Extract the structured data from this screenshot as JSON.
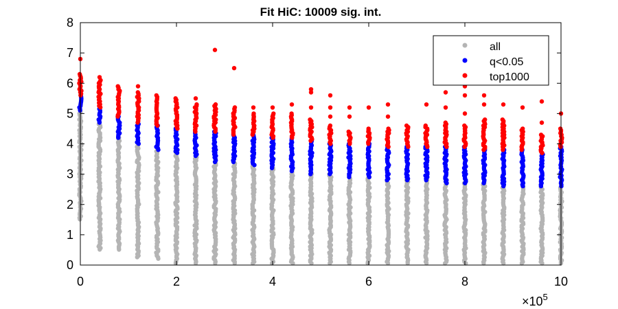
{
  "chart_data": {
    "type": "scatter",
    "title": "Fit HiC: 10009 sig. int.",
    "xlabel": "",
    "ylabel": "",
    "x_exponent_label": "×10",
    "x_exponent_power": "5",
    "xlim": [
      0,
      10
    ],
    "ylim": [
      0,
      8
    ],
    "x_ticks": [
      0,
      2,
      4,
      6,
      8,
      10
    ],
    "x_tick_labels": [
      "0",
      "2",
      "4",
      "6",
      "8",
      "10"
    ],
    "y_ticks": [
      0,
      1,
      2,
      3,
      4,
      5,
      6,
      7,
      8
    ],
    "y_tick_labels": [
      "0",
      "1",
      "2",
      "3",
      "4",
      "5",
      "6",
      "7",
      "8"
    ],
    "grid": false,
    "legend_position": "top-right",
    "series": [
      {
        "name": "all",
        "color": "#b4b4b4"
      },
      {
        "name": "q<0.05",
        "color": "#0000ff"
      },
      {
        "name": "top1000",
        "color": "#ff0000"
      }
    ],
    "distance_bins": [
      {
        "x": 0.0,
        "all": [
          1.5,
          5.1
        ],
        "q": [
          5.1,
          5.6
        ],
        "top": [
          5.6,
          6.3
        ],
        "top_outliers": [
          6.8
        ]
      },
      {
        "x": 0.4,
        "all": [
          0.5,
          4.7
        ],
        "q": [
          4.7,
          5.2
        ],
        "top": [
          5.2,
          6.1
        ],
        "top_outliers": [
          6.2
        ]
      },
      {
        "x": 0.8,
        "all": [
          0.5,
          4.2
        ],
        "q": [
          4.2,
          4.9
        ],
        "top": [
          4.9,
          5.9
        ],
        "top_outliers": []
      },
      {
        "x": 1.2,
        "all": [
          0.25,
          4.0
        ],
        "q": [
          4.0,
          4.7
        ],
        "top": [
          4.7,
          5.7
        ],
        "top_outliers": [
          5.9
        ]
      },
      {
        "x": 1.6,
        "all": [
          0.2,
          3.8
        ],
        "q": [
          3.8,
          4.6
        ],
        "top": [
          4.6,
          5.6
        ],
        "top_outliers": []
      },
      {
        "x": 2.0,
        "all": [
          0.05,
          3.7
        ],
        "q": [
          3.7,
          4.5
        ],
        "top": [
          4.5,
          5.5
        ],
        "top_outliers": []
      },
      {
        "x": 2.4,
        "all": [
          0.05,
          3.6
        ],
        "q": [
          3.6,
          4.4
        ],
        "top": [
          4.4,
          5.3
        ],
        "top_outliers": [
          5.5
        ]
      },
      {
        "x": 2.8,
        "all": [
          0.05,
          3.4
        ],
        "q": [
          3.4,
          4.4
        ],
        "top": [
          4.4,
          5.3
        ],
        "top_outliers": [
          7.1
        ]
      },
      {
        "x": 3.2,
        "all": [
          0.05,
          3.4
        ],
        "q": [
          3.4,
          4.3
        ],
        "top": [
          4.3,
          5.2
        ],
        "top_outliers": [
          6.5
        ]
      },
      {
        "x": 3.6,
        "all": [
          0.05,
          3.3
        ],
        "q": [
          3.3,
          4.3
        ],
        "top": [
          4.3,
          5.0
        ],
        "top_outliers": [
          5.2
        ]
      },
      {
        "x": 4.0,
        "all": [
          0.05,
          3.2
        ],
        "q": [
          3.2,
          4.2
        ],
        "top": [
          4.2,
          5.0
        ],
        "top_outliers": [
          5.2
        ]
      },
      {
        "x": 4.4,
        "all": [
          0.05,
          3.1
        ],
        "q": [
          3.1,
          4.2
        ],
        "top": [
          4.2,
          5.0
        ],
        "top_outliers": [
          5.3
        ]
      },
      {
        "x": 4.8,
        "all": [
          0.05,
          3.0
        ],
        "q": [
          3.0,
          4.1
        ],
        "top": [
          4.1,
          4.8
        ],
        "top_outliers": [
          5.2,
          5.7,
          5.8
        ]
      },
      {
        "x": 5.2,
        "all": [
          0.05,
          3.0
        ],
        "q": [
          3.0,
          4.0
        ],
        "top": [
          4.0,
          4.6
        ],
        "top_outliers": [
          4.9,
          5.2,
          5.6
        ]
      },
      {
        "x": 5.6,
        "all": [
          0.05,
          2.9
        ],
        "q": [
          2.9,
          4.0
        ],
        "top": [
          4.0,
          4.4
        ],
        "top_outliers": [
          4.9,
          5.2
        ]
      },
      {
        "x": 6.0,
        "all": [
          0.05,
          2.9
        ],
        "q": [
          2.9,
          4.0
        ],
        "top": [
          4.0,
          4.5
        ],
        "top_outliers": [
          5.2
        ]
      },
      {
        "x": 6.4,
        "all": [
          0.05,
          2.8
        ],
        "q": [
          2.8,
          3.9
        ],
        "top": [
          3.9,
          4.5
        ],
        "top_outliers": [
          4.9,
          5.3
        ]
      },
      {
        "x": 6.8,
        "all": [
          0.05,
          2.8
        ],
        "q": [
          2.8,
          3.9
        ],
        "top": [
          3.9,
          4.6
        ],
        "top_outliers": []
      },
      {
        "x": 7.2,
        "all": [
          0.05,
          2.8
        ],
        "q": [
          2.8,
          3.9
        ],
        "top": [
          3.9,
          4.6
        ],
        "top_outliers": [
          5.3
        ]
      },
      {
        "x": 7.6,
        "all": [
          0.05,
          2.7
        ],
        "q": [
          2.7,
          3.9
        ],
        "top": [
          3.9,
          4.7
        ],
        "top_outliers": [
          5.2,
          5.7
        ]
      },
      {
        "x": 8.0,
        "all": [
          0.05,
          2.7
        ],
        "q": [
          2.7,
          3.9
        ],
        "top": [
          3.9,
          4.6
        ],
        "top_outliers": [
          5.0,
          5.6,
          5.9
        ]
      },
      {
        "x": 8.4,
        "all": [
          0.05,
          2.7
        ],
        "q": [
          2.7,
          3.8
        ],
        "top": [
          3.8,
          4.8
        ],
        "top_outliers": [
          5.3,
          5.6
        ]
      },
      {
        "x": 8.8,
        "all": [
          0.05,
          2.6
        ],
        "q": [
          2.6,
          3.8
        ],
        "top": [
          3.8,
          4.8
        ],
        "top_outliers": [
          5.3
        ]
      },
      {
        "x": 9.2,
        "all": [
          0.05,
          2.6
        ],
        "q": [
          2.6,
          3.8
        ],
        "top": [
          3.8,
          4.5
        ],
        "top_outliers": [
          5.2
        ]
      },
      {
        "x": 9.6,
        "all": [
          0.05,
          2.6
        ],
        "q": [
          2.6,
          3.7
        ],
        "top": [
          3.7,
          4.3
        ],
        "top_outliers": [
          4.7,
          5.4
        ]
      },
      {
        "x": 10.0,
        "all": [
          0.05,
          2.6
        ],
        "q": [
          2.6,
          3.9
        ],
        "top": [
          3.9,
          4.5
        ],
        "top_outliers": [
          5.0
        ]
      }
    ]
  }
}
